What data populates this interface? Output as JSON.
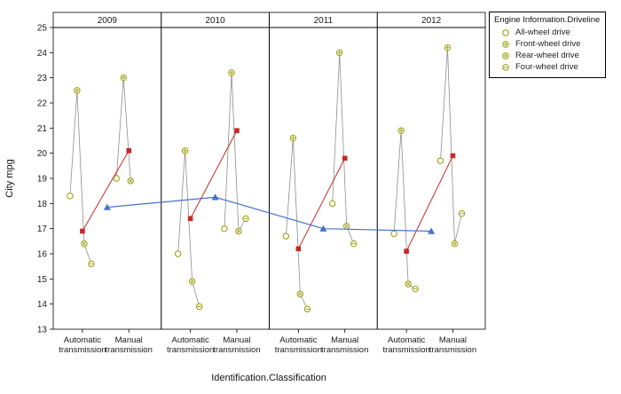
{
  "chart_data": {
    "type": "scatter",
    "title": "",
    "ylabel": "City mpg",
    "xlabel": "Identification.Classification",
    "ylim": [
      13,
      25
    ],
    "ytick_step": 1,
    "grid": false,
    "legend_position": "top-right-outside",
    "x_categories": [
      "Automatic transmission",
      "Manual transmission"
    ],
    "legend": {
      "title": "Engine Information.Driveline",
      "entries": [
        {
          "key": "all_wheel",
          "label": "All-wheel drive",
          "marker": "circle"
        },
        {
          "key": "front_wheel",
          "label": "Front-wheel drive",
          "marker": "circle-plus"
        },
        {
          "key": "rear_wheel",
          "label": "Rear-wheel drive",
          "marker": "circle-x"
        },
        {
          "key": "four_wheel",
          "label": "Four-wheel drive",
          "marker": "circle-minus"
        }
      ]
    },
    "panels": [
      {
        "year": "2009",
        "panel_mean": 17.85,
        "groups": [
          {
            "category": "Automatic transmission",
            "mean": 16.9,
            "values": {
              "all_wheel": 18.3,
              "front_wheel": 22.5,
              "rear_wheel": 16.4,
              "four_wheel": 15.6
            }
          },
          {
            "category": "Manual transmission",
            "mean": 20.1,
            "values": {
              "all_wheel": 19.0,
              "front_wheel": 23.0,
              "rear_wheel": 18.9,
              "four_wheel": null
            }
          }
        ]
      },
      {
        "year": "2010",
        "panel_mean": 18.25,
        "groups": [
          {
            "category": "Automatic transmission",
            "mean": 17.4,
            "values": {
              "all_wheel": 16.0,
              "front_wheel": 20.1,
              "rear_wheel": 14.9,
              "four_wheel": 13.9
            }
          },
          {
            "category": "Manual transmission",
            "mean": 20.9,
            "values": {
              "all_wheel": 17.0,
              "front_wheel": 23.2,
              "rear_wheel": 16.9,
              "four_wheel": 17.4
            }
          }
        ]
      },
      {
        "year": "2011",
        "panel_mean": 17.0,
        "groups": [
          {
            "category": "Automatic transmission",
            "mean": 16.2,
            "values": {
              "all_wheel": 16.7,
              "front_wheel": 20.6,
              "rear_wheel": 14.4,
              "four_wheel": 13.8
            }
          },
          {
            "category": "Manual transmission",
            "mean": 19.8,
            "values": {
              "all_wheel": 18.0,
              "front_wheel": 24.0,
              "rear_wheel": 17.1,
              "four_wheel": 16.4
            }
          }
        ]
      },
      {
        "year": "2012",
        "panel_mean": 16.9,
        "groups": [
          {
            "category": "Automatic transmission",
            "mean": 16.1,
            "values": {
              "all_wheel": 16.8,
              "front_wheel": 20.9,
              "rear_wheel": 14.8,
              "four_wheel": 14.6
            }
          },
          {
            "category": "Manual transmission",
            "mean": 19.9,
            "values": {
              "all_wheel": 19.7,
              "front_wheel": 24.2,
              "rear_wheel": 16.4,
              "four_wheel": 17.6
            }
          }
        ]
      }
    ],
    "colors": {
      "marker": "#999900",
      "connector": "#8f8f8f",
      "mean": "#c62828",
      "trend": "#4472c4",
      "frame": "#000000"
    }
  }
}
